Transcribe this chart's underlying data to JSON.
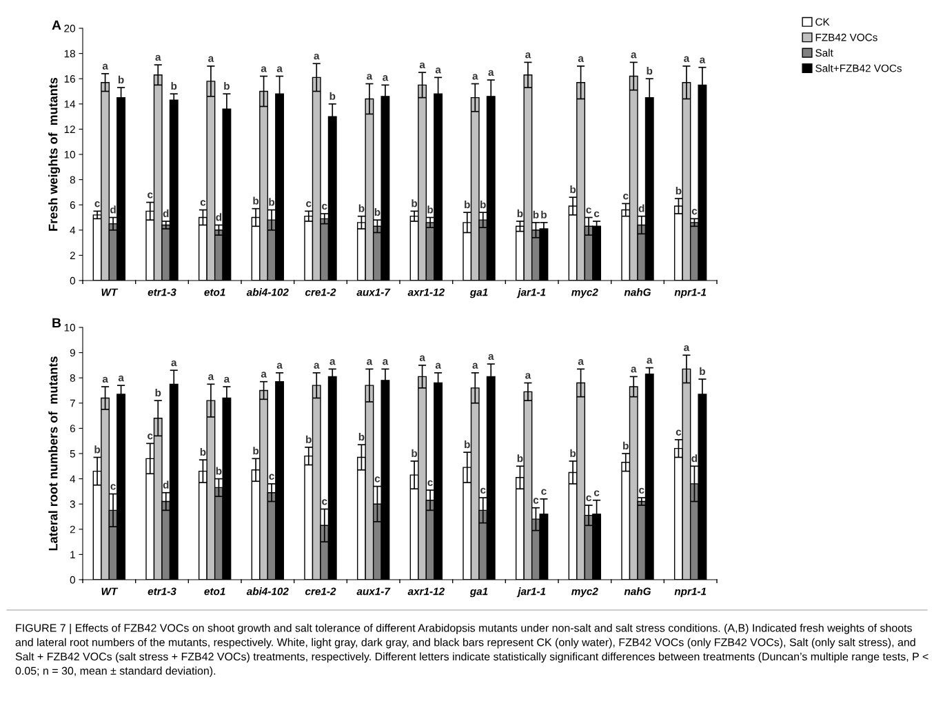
{
  "chart_data": [
    {
      "type": "bar",
      "ylabel": "Fresh weights of  mutants",
      "annotations": [
        "A"
      ],
      "categories": [
        "WT",
        "etr1-3",
        "eto1",
        "abi4-102",
        "cre1-2",
        "aux1-7",
        "axr1-12",
        "ga1",
        "jar1-1",
        "myc2",
        "nahG",
        "npr1-1"
      ],
      "ylim": [
        0,
        20
      ],
      "yticks": [
        0,
        2,
        4,
        6,
        8,
        10,
        12,
        14,
        16,
        18,
        20
      ],
      "grid": false,
      "legend": "top right",
      "series": [
        {
          "name": "CK",
          "color": "#ffffff",
          "values": [
            5.2,
            5.5,
            5.0,
            5.0,
            5.1,
            4.6,
            5.1,
            4.6,
            4.3,
            5.9,
            5.6,
            5.9
          ],
          "errors": [
            0.3,
            0.7,
            0.6,
            0.7,
            0.4,
            0.5,
            0.4,
            0.8,
            0.4,
            0.7,
            0.5,
            0.6
          ],
          "value_labels": [
            "c",
            "c",
            "c",
            "b",
            "c",
            "b",
            "b",
            "b",
            "b",
            "b",
            "c",
            "b"
          ]
        },
        {
          "name": "FZB42 VOCs",
          "color": "#c0c0c0",
          "values": [
            15.7,
            16.3,
            15.8,
            15.0,
            16.1,
            14.4,
            15.5,
            14.5,
            16.3,
            15.7,
            16.2,
            15.7
          ],
          "errors": [
            0.7,
            0.8,
            1.2,
            1.2,
            1.1,
            1.2,
            1.0,
            1.1,
            1.0,
            1.3,
            1.1,
            1.3
          ],
          "value_labels": [
            "a",
            "a",
            "a",
            "a",
            "a",
            "a",
            "a",
            "a",
            "a",
            "a",
            "a",
            "a"
          ]
        },
        {
          "name": "Salt",
          "color": "#808080",
          "values": [
            4.5,
            4.4,
            4.0,
            4.8,
            4.9,
            4.3,
            4.6,
            4.8,
            4.0,
            4.3,
            4.4,
            4.6
          ],
          "errors": [
            0.5,
            0.3,
            0.4,
            0.8,
            0.4,
            0.5,
            0.4,
            0.6,
            0.6,
            0.7,
            0.7,
            0.3
          ],
          "value_labels": [
            "d",
            "d",
            "d",
            "b",
            "c",
            "b",
            "b",
            "b",
            "b",
            "c",
            "d",
            "c"
          ]
        },
        {
          "name": "Salt+FZB42 VOCs",
          "color": "#000000",
          "values": [
            14.5,
            14.3,
            13.6,
            14.8,
            13.0,
            14.6,
            14.8,
            14.6,
            4.1,
            4.3,
            14.5,
            15.5
          ],
          "errors": [
            0.8,
            0.5,
            1.2,
            1.4,
            1.0,
            0.9,
            1.3,
            1.3,
            0.5,
            0.4,
            1.5,
            1.4
          ],
          "value_labels": [
            "b",
            "b",
            "b",
            "a",
            "b",
            "a",
            "a",
            "a",
            "b",
            "c",
            "b",
            "a"
          ]
        }
      ]
    },
    {
      "type": "bar",
      "ylabel": "Lateral root numbers of  mutants",
      "annotations": [
        "B",
        "FIGURE 7 | Effects of FZB42 VOCs on shoot growth and salt tolerance of different Arabidopsis mutants under non-salt and salt stress conditions. (A,B) Indicated fresh weights of shoots and lateral root numbers of the mutants, respectively. White, light gray, dark gray, and black bars represent CK (only water), FZB42 VOCs (only FZB42 VOCs), Salt (only salt stress), and Salt + FZB42 VOCs (salt stress + FZB42 VOCs) treatments, respectively. Different letters indicate statistically significant differences between treatments (Duncan’s multiple range tests, P < 0.05; n = 30, mean ± standard deviation)."
      ],
      "categories": [
        "WT",
        "etr1-3",
        "eto1",
        "abi4-102",
        "cre1-2",
        "aux1-7",
        "axr1-12",
        "ga1",
        "jar1-1",
        "myc2",
        "nahG",
        "npr1-1"
      ],
      "ylim": [
        0,
        10
      ],
      "yticks": [
        0,
        1,
        2,
        3,
        4,
        5,
        6,
        7,
        8,
        9,
        10
      ],
      "grid": false,
      "legend": false,
      "series": [
        {
          "color": "#ffffff",
          "values": [
            4.3,
            4.8,
            4.3,
            4.35,
            4.9,
            4.85,
            4.15,
            4.45,
            4.05,
            4.25,
            4.65,
            5.2
          ],
          "errors": [
            0.55,
            0.6,
            0.45,
            0.45,
            0.35,
            0.5,
            0.55,
            0.6,
            0.45,
            0.45,
            0.35,
            0.35
          ],
          "value_labels": [
            "b",
            "c",
            "b",
            "b",
            "b",
            "b",
            "b",
            "b",
            "b",
            "b",
            "b",
            "c"
          ]
        },
        {
          "color": "#c0c0c0",
          "values": [
            7.2,
            6.4,
            7.1,
            7.5,
            7.7,
            7.7,
            8.05,
            7.6,
            7.45,
            7.8,
            7.65,
            8.35
          ],
          "errors": [
            0.45,
            0.7,
            0.65,
            0.35,
            0.5,
            0.65,
            0.45,
            0.6,
            0.35,
            0.55,
            0.4,
            0.55
          ],
          "value_labels": [
            "a",
            "b",
            "a",
            "a",
            "a",
            "a",
            "a",
            "a",
            "a",
            "a",
            "a",
            "a"
          ]
        },
        {
          "color": "#808080",
          "values": [
            2.75,
            3.1,
            3.65,
            3.45,
            2.15,
            3.0,
            3.15,
            2.75,
            2.4,
            2.55,
            3.1,
            3.8
          ],
          "errors": [
            0.65,
            0.35,
            0.35,
            0.35,
            0.65,
            0.7,
            0.4,
            0.5,
            0.45,
            0.4,
            0.15,
            0.7
          ],
          "value_labels": [
            "c",
            "d",
            "b",
            "c",
            "c",
            "c",
            "c",
            "c",
            "c",
            "c",
            "c",
            "d"
          ]
        },
        {
          "color": "#000000",
          "values": [
            7.35,
            7.75,
            7.2,
            7.85,
            8.05,
            7.9,
            7.8,
            8.05,
            2.6,
            2.6,
            8.15,
            7.35
          ],
          "errors": [
            0.35,
            0.55,
            0.45,
            0.35,
            0.3,
            0.45,
            0.4,
            0.5,
            0.6,
            0.55,
            0.25,
            0.6
          ],
          "value_labels": [
            "a",
            "a",
            "a",
            "a",
            "a",
            "a",
            "a",
            "a",
            "c",
            "c",
            "a",
            "b"
          ]
        }
      ]
    }
  ]
}
